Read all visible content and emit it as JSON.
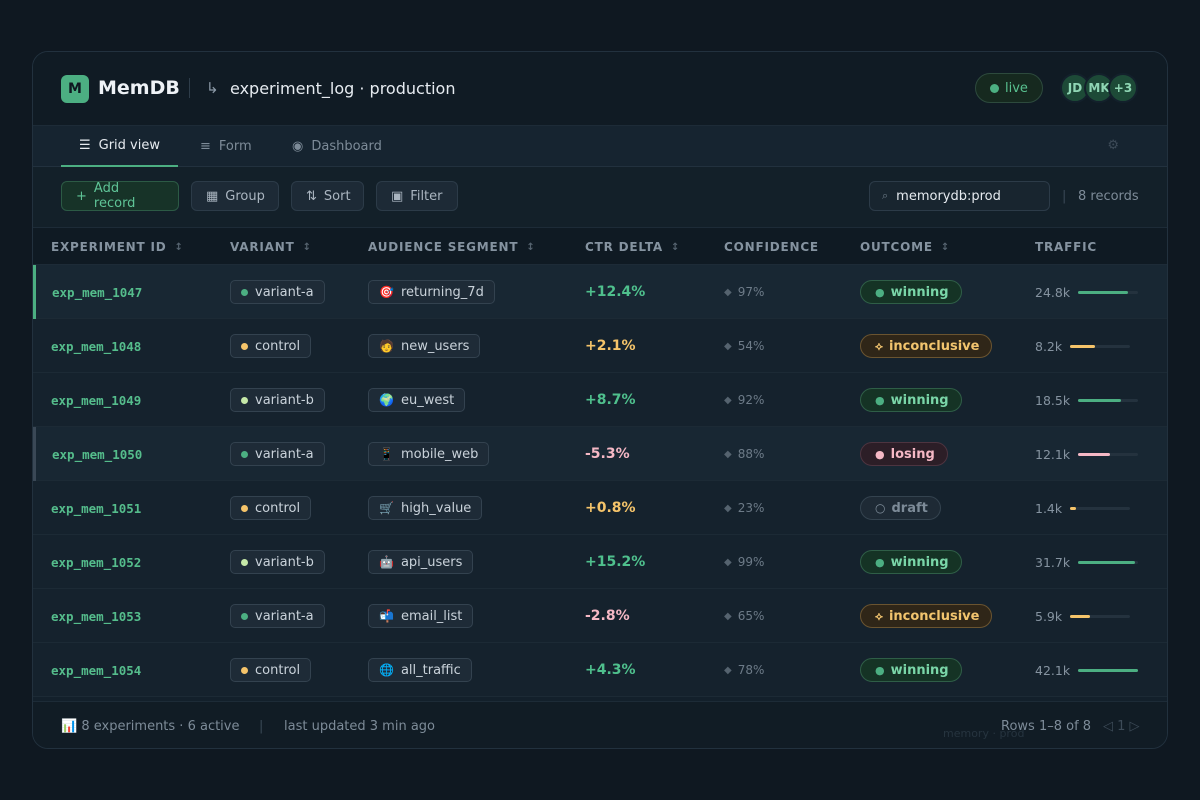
{
  "header": {
    "logo_letter": "M",
    "brand": "MemDB",
    "db_icon": "↳",
    "title": "experiment_log · production",
    "status": "live",
    "avatars": [
      "JD",
      "MK",
      "+3"
    ]
  },
  "tabs": [
    {
      "icon": "☰",
      "label": "Grid view",
      "active": true
    },
    {
      "icon": "≡",
      "label": "Form",
      "active": false
    },
    {
      "icon": "◉",
      "label": "Dashboard",
      "active": false
    }
  ],
  "tab_settings_icon": "⚙",
  "toolbar": {
    "add": {
      "icon": "+",
      "label": "Add record"
    },
    "group": {
      "icon": "▦",
      "label": "Group"
    },
    "sort": {
      "icon": "⇅",
      "label": "Sort"
    },
    "filter": {
      "icon": "▣",
      "label": "Filter"
    },
    "search_icon": "⌕",
    "search_value": "memorydb:prod",
    "separator": "|",
    "record_count": "8 records"
  },
  "columns": [
    "EXPERIMENT ID",
    "VARIANT",
    "AUDIENCE SEGMENT",
    "CTR DELTA",
    "CONFIDENCE",
    "OUTCOME",
    "TRAFFIC"
  ],
  "sort_icon": "↕",
  "rows": [
    {
      "id": "exp_mem_1047",
      "variant": "variant-a",
      "segment_icon": "🎯",
      "segment": "returning_7d",
      "ctr": "+12.4%",
      "confidence": "97%",
      "outcome": "winning",
      "traffic": "24.8k",
      "traffic_share": 0.83
    },
    {
      "id": "exp_mem_1048",
      "variant": "control",
      "segment_icon": "🧑",
      "segment": "new_users",
      "ctr": "+2.1%",
      "confidence": "54%",
      "outcome": "inconclusive",
      "traffic": "8.2k",
      "traffic_share": 0.42
    },
    {
      "id": "exp_mem_1049",
      "variant": "variant-b",
      "segment_icon": "🌍",
      "segment": "eu_west",
      "ctr": "+8.7%",
      "confidence": "92%",
      "outcome": "winning",
      "traffic": "18.5k",
      "traffic_share": 0.72
    },
    {
      "id": "exp_mem_1050",
      "variant": "variant-a",
      "segment_icon": "📱",
      "segment": "mobile_web",
      "ctr": "-5.3%",
      "confidence": "88%",
      "outcome": "losing",
      "traffic": "12.1k",
      "traffic_share": 0.53
    },
    {
      "id": "exp_mem_1051",
      "variant": "control",
      "segment_icon": "🛒",
      "segment": "high_value",
      "ctr": "+0.8%",
      "confidence": "23%",
      "outcome": "draft",
      "traffic": "1.4k",
      "traffic_share": 0.1
    },
    {
      "id": "exp_mem_1052",
      "variant": "variant-b",
      "segment_icon": "🤖",
      "segment": "api_users",
      "ctr": "+15.2%",
      "confidence": "99%",
      "outcome": "winning",
      "traffic": "31.7k",
      "traffic_share": 0.95
    },
    {
      "id": "exp_mem_1053",
      "variant": "variant-a",
      "segment_icon": "📬",
      "segment": "email_list",
      "ctr": "-2.8%",
      "confidence": "65%",
      "outcome": "inconclusive",
      "traffic": "5.9k",
      "traffic_share": 0.33
    },
    {
      "id": "exp_mem_1054",
      "variant": "control",
      "segment_icon": "🌐",
      "segment": "all_traffic",
      "ctr": "+4.3%",
      "confidence": "78%",
      "outcome": "winning",
      "traffic": "42.1k",
      "traffic_share": 1.0
    }
  ],
  "conf_icon": "◆",
  "outcome_icons": {
    "winning": "●",
    "inconclusive": "⟡",
    "losing": "●",
    "draft": "○"
  },
  "footer": {
    "summary_icon": "📊",
    "summary": "8 experiments · 6 active",
    "separator": "|",
    "updated": "last updated 3 min ago",
    "rows_info": "Rows 1–8 of 8",
    "pager": "◁ 1 ▷",
    "ghost": "memory · prod"
  },
  "colors": {
    "accent": "#4caf82",
    "variant-a": "#4caf82",
    "variant-b": "#c5e8a8",
    "control": "#f5c46a",
    "positive": "#4fc08d",
    "neutral": "#f5c46a",
    "negative": "#f5b8c5"
  }
}
